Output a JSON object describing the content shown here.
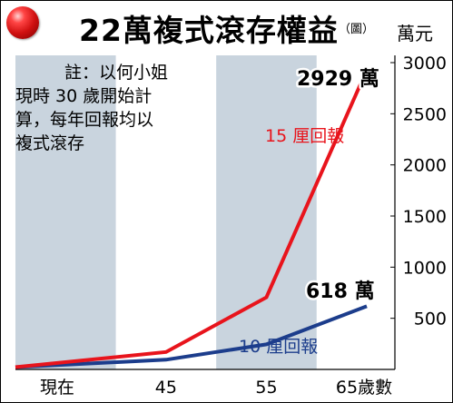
{
  "title": "22萬複式滾存權益",
  "title_note": "（圖）",
  "y_unit": "萬元",
  "note_lines": [
    "註：以何小姐",
    "現時 30 歲開始計",
    "算，每年回報均以",
    "複式滾存"
  ],
  "colors": {
    "red_series": "#e8141c",
    "blue_series": "#1c3d8c",
    "shade": "#c9d4de",
    "background": "#ffffff"
  },
  "chart_data": {
    "type": "line",
    "x": [
      30,
      45,
      55,
      65
    ],
    "x_tick_labels": [
      "現在",
      "45",
      "55",
      "65歲數"
    ],
    "y_ticks": [
      500,
      1000,
      1500,
      2000,
      2500,
      3000
    ],
    "ylim": [
      0,
      3000
    ],
    "y_unit": "萬元",
    "shaded_bands": [
      [
        30,
        40
      ],
      [
        50,
        60
      ]
    ],
    "series": [
      {
        "name": "15 厘回報",
        "color": "#e8141c",
        "values": [
          22,
          170,
          705,
          2929
        ],
        "end_label": "2929 萬"
      },
      {
        "name": "10 厘回報",
        "color": "#1c3d8c",
        "values": [
          22,
          95,
          245,
          618
        ],
        "end_label": "618 萬"
      }
    ]
  }
}
